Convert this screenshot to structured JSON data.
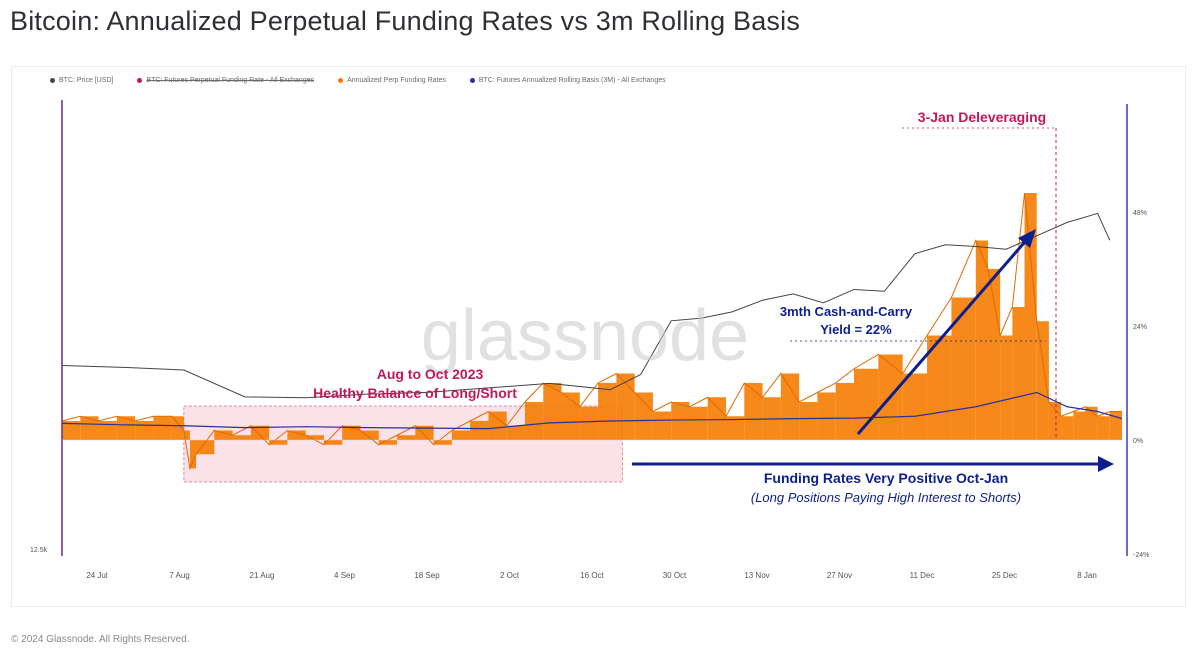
{
  "title": "Bitcoin: Annualized Perpetual Funding Rates vs 3m Rolling Basis",
  "legend": [
    {
      "label": "BTC: Price [USD]",
      "color": "#444444",
      "strike": false
    },
    {
      "label": "BTC: Futures Perpetual Funding Rate - All Exchanges",
      "color": "#c2185b",
      "strike": true
    },
    {
      "label": "Annualized Perp Funding Rates",
      "color": "#f57c00",
      "strike": false
    },
    {
      "label": "BTC: Futures Annualized Rolling Basis (3M) - All Exchanges",
      "color": "#2b2f9c",
      "strike": false
    }
  ],
  "watermark": "glassnode",
  "annotations": {
    "deleveraging": "3-Jan Deleveraging",
    "aug_oct_line1": "Aug to Oct 2023",
    "aug_oct_line2": "Healthy Balance of Long/Short",
    "carry_line1": "3mth Cash-and-Carry",
    "carry_line2": "Yield = 22%",
    "funding_line1": "Funding Rates Very Positive Oct-Jan",
    "funding_line2": "(Long Positions Paying High Interest to Shorts)"
  },
  "colors": {
    "funding": "#f57c00",
    "basis": "#2b2f9c",
    "price": "#444444",
    "highlight": "#c2185b",
    "arrow": "#0d1f8c"
  },
  "copyright": "© 2024 Glassnode. All Rights Reserved.",
  "chart_data": {
    "type": "area",
    "x_tick_labels": [
      "24 Jul",
      "7 Aug",
      "21 Aug",
      "4 Sep",
      "18 Sep",
      "2 Oct",
      "16 Oct",
      "30 Oct",
      "13 Nov",
      "27 Nov",
      "11 Dec",
      "25 Dec",
      "8 Jan"
    ],
    "left_axis_tick_labels": [
      "12.5k"
    ],
    "right_axis_tick_labels": [
      "48%",
      "24%",
      "0%",
      "-24%"
    ],
    "right_axis_ylim": [
      -24,
      48
    ],
    "series": [
      {
        "name": "Annualized Perp Funding Rates",
        "type": "area",
        "axis": "right",
        "x_day": [
          0,
          3,
          6,
          9,
          12,
          15,
          18,
          20,
          21,
          22,
          25,
          28,
          31,
          34,
          37,
          40,
          43,
          46,
          49,
          52,
          55,
          58,
          61,
          64,
          67,
          70,
          73,
          76,
          79,
          82,
          85,
          88,
          91,
          94,
          97,
          100,
          103,
          106,
          109,
          112,
          115,
          118,
          121,
          124,
          127,
          130,
          134,
          138,
          142,
          146,
          150,
          152,
          154,
          156,
          158,
          160,
          162,
          164,
          166,
          168,
          170,
          172,
          174
        ],
        "values": [
          4,
          5,
          4,
          5,
          4,
          5,
          5,
          2,
          -6,
          -3,
          2,
          1,
          3,
          -1,
          2,
          1,
          -1,
          3,
          2,
          -1,
          1,
          3,
          -1,
          2,
          4,
          6,
          3,
          8,
          12,
          10,
          7,
          12,
          14,
          10,
          6,
          8,
          7,
          9,
          5,
          12,
          9,
          14,
          8,
          10,
          12,
          15,
          18,
          14,
          22,
          30,
          42,
          36,
          22,
          28,
          52,
          25,
          8,
          5,
          6,
          7,
          5,
          6,
          6
        ]
      },
      {
        "name": "BTC: Futures Annualized Rolling Basis (3M) - All Exchanges",
        "type": "line",
        "axis": "right",
        "x_day": [
          0,
          10,
          20,
          30,
          40,
          50,
          60,
          70,
          80,
          90,
          100,
          110,
          120,
          130,
          140,
          150,
          155,
          160,
          165,
          170,
          174
        ],
        "values": [
          3.5,
          3.2,
          3.0,
          2.6,
          2.8,
          2.6,
          2.5,
          2.4,
          3.6,
          4.0,
          4.2,
          4.3,
          4.5,
          4.6,
          5.0,
          7.0,
          8.5,
          10,
          7,
          6,
          4.5
        ]
      },
      {
        "name": "BTC: Price [USD]",
        "type": "line",
        "axis": "left",
        "x_day": [
          0,
          10,
          20,
          30,
          40,
          50,
          60,
          70,
          80,
          90,
          95,
          100,
          105,
          110,
          115,
          120,
          125,
          130,
          135,
          140,
          145,
          150,
          155,
          160,
          165,
          170,
          172
        ],
        "values": [
          29500,
          29300,
          29000,
          26000,
          25900,
          26300,
          26500,
          27000,
          27500,
          26800,
          28500,
          34500,
          34800,
          35500,
          36800,
          37500,
          36500,
          38000,
          37800,
          42000,
          43000,
          42800,
          42500,
          44000,
          45500,
          46500,
          43500
        ]
      }
    ]
  }
}
